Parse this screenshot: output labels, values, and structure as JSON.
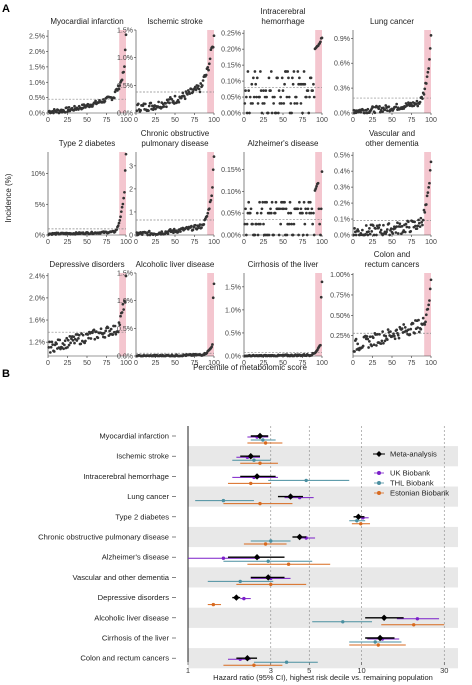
{
  "panels": {
    "a": "A",
    "b": "B"
  },
  "chart_data": [
    {
      "type": "scatter",
      "panel": "A",
      "ylabel": "Incidence (%)",
      "xlabel": "Percentile of metabolomic score",
      "x_ticks": [
        "0",
        "25",
        "50",
        "75",
        "100"
      ],
      "x_range": [
        0,
        100
      ],
      "highlight_range": [
        90,
        100
      ],
      "dashed_line": "mean incidence",
      "subplots": [
        {
          "title": [
            "Myocardial infarction"
          ],
          "yticks": [
            "0.0%",
            "0.5%",
            "1.0%",
            "1.5%",
            "2.0%",
            "2.5%"
          ],
          "ymax": 2.7,
          "base": 0.05,
          "mid": 0.7,
          "top": 1.45,
          "max": 2.55,
          "mean": 0.45,
          "spread": 0.08,
          "mode": "exp"
        },
        {
          "title": [
            "Ischemic stroke"
          ],
          "yticks": [
            "0.0%",
            "0.5%",
            "1.0%",
            "1.5%"
          ],
          "ymax": 1.5,
          "base": 0.1,
          "mid": 0.6,
          "top": 1.25,
          "max": 1.45,
          "mean": 0.38,
          "spread": 0.08,
          "mode": "exp"
        },
        {
          "title": [
            "Intracerebral",
            "hemorrhage"
          ],
          "yticks": [
            "0.00%",
            "0.05%",
            "0.10%",
            "0.15%",
            "0.20%",
            "0.25%"
          ],
          "ymax": 0.26,
          "base": 0.05,
          "mid": 0.08,
          "top": 0.2,
          "max": 0.24,
          "mean": 0.08,
          "spread": 0.028,
          "mode": "discrete",
          "levels": [
            0.0,
            0.03,
            0.05,
            0.07,
            0.09,
            0.11,
            0.13
          ]
        },
        {
          "title": [
            "Lung cancer"
          ],
          "yticks": [
            "0.0%",
            "0.3%",
            "0.6%",
            "0.9%"
          ],
          "ymax": 1.0,
          "base": 0.03,
          "mid": 0.15,
          "top": 0.65,
          "max": 0.95,
          "mean": 0.18,
          "spread": 0.04,
          "mode": "exp"
        },
        {
          "title": [
            "Type 2 diabetes"
          ],
          "yticks": [
            "0%",
            "5%",
            "10%"
          ],
          "ymax": 13.5,
          "base": 0.2,
          "mid": 0.6,
          "top": 7.0,
          "max": 13.0,
          "mean": 1.0,
          "spread": 0.15,
          "mode": "exp"
        },
        {
          "title": [
            "Chronic obstructive",
            "pulmonary disease"
          ],
          "yticks": [
            "0",
            "1",
            "2",
            "3"
          ],
          "ymax": 3.6,
          "base": 0.05,
          "mid": 0.5,
          "top": 2.0,
          "max": 3.5,
          "mean": 0.65,
          "spread": 0.1,
          "mode": "exp"
        },
        {
          "title": [
            "Alzheimer's disease"
          ],
          "yticks": [
            "0.00%",
            "0.05%",
            "0.10%",
            "0.15%"
          ],
          "ymax": 0.19,
          "base": 0.02,
          "mid": 0.04,
          "top": 0.1,
          "max": 0.17,
          "mean": 0.035,
          "spread": 0.02,
          "mode": "discrete",
          "levels": [
            0.0,
            0.025,
            0.05,
            0.06,
            0.075
          ]
        },
        {
          "title": [
            "Vascular and",
            "other dementia"
          ],
          "yticks": [
            "0.0%",
            "0.1%",
            "0.2%",
            "0.3%",
            "0.4%",
            "0.5%"
          ],
          "ymax": 0.52,
          "base": 0.02,
          "mid": 0.08,
          "top": 0.3,
          "max": 0.48,
          "mean": 0.09,
          "spread": 0.04,
          "mode": "exp"
        },
        {
          "title": [
            "Depressive disorders"
          ],
          "yticks": [
            "1.2%",
            "1.6%",
            "2.0%",
            "2.4%"
          ],
          "ymin": 0.95,
          "ymax": 2.45,
          "base": 1.1,
          "mid": 1.4,
          "top": 1.95,
          "max": 2.3,
          "mean": 1.38,
          "spread": 0.1,
          "mode": "lin"
        },
        {
          "title": [
            "Alcoholic liver disease"
          ],
          "yticks": [
            "0.0%",
            "0.5%",
            "1.0%",
            "1.5%"
          ],
          "ymax": 1.5,
          "base": 0.0,
          "mid": 0.03,
          "top": 0.2,
          "max": 1.3,
          "mean": 0.05,
          "spread": 0.015,
          "mode": "exp"
        },
        {
          "title": [
            "Cirrhosis of the liver"
          ],
          "yticks": [
            "0.0%",
            "0.5%",
            "1.0%",
            "1.5%"
          ],
          "ymax": 1.8,
          "base": 0.0,
          "mid": 0.03,
          "top": 0.25,
          "max": 1.6,
          "mean": 0.08,
          "spread": 0.02,
          "mode": "exp"
        },
        {
          "title": [
            "Colon and",
            "rectum cancers"
          ],
          "yticks": [
            "0.25%",
            "0.50%",
            "0.75%",
            "1.00%"
          ],
          "ymin": 0.0,
          "ymax": 1.02,
          "base": 0.12,
          "mid": 0.35,
          "top": 0.72,
          "max": 0.95,
          "mean": 0.28,
          "spread": 0.08,
          "mode": "lin"
        }
      ]
    },
    {
      "type": "forest",
      "panel": "B",
      "xlabel": "Hazard ratio (95% CI), highest risk decile vs. remaining population",
      "xscale": "log",
      "xlim": [
        1,
        36
      ],
      "x_ticks": [
        1,
        3,
        5,
        10,
        30
      ],
      "dashed_at": [
        3,
        5,
        10,
        30
      ],
      "legend": [
        {
          "name": "Meta-analysis",
          "color": "#000000",
          "shape": "diamond"
        },
        {
          "name": "UK Biobank",
          "color": "#7b1fc9",
          "shape": "circle"
        },
        {
          "name": "THL Biobank",
          "color": "#4a8fa0",
          "shape": "circle"
        },
        {
          "name": "Estonian Biobank",
          "color": "#d86a1f",
          "shape": "circle"
        }
      ],
      "rows": [
        {
          "label": "Myocardial infarction",
          "meta": [
            2.6,
            2.3,
            2.9
          ],
          "ukb": [
            2.5,
            2.2,
            2.9
          ],
          "thl": [
            2.7,
            2.3,
            3.2
          ],
          "est": [
            2.8,
            2.2,
            3.5
          ]
        },
        {
          "label": "Ischemic stroke",
          "meta": [
            2.3,
            2.0,
            2.6
          ],
          "ukb": [
            2.2,
            1.9,
            2.6
          ],
          "thl": [
            2.4,
            1.8,
            3.0
          ],
          "est": [
            2.6,
            2.0,
            3.3
          ]
        },
        {
          "label": "Intracerebral hemorrhage",
          "meta": [
            2.5,
            2.0,
            3.2
          ],
          "ukb": [
            2.4,
            1.8,
            3.3
          ],
          "thl": [
            4.8,
            2.9,
            8.5
          ],
          "est": [
            2.3,
            1.7,
            3.0
          ]
        },
        {
          "label": "Lung cancer",
          "meta": [
            3.9,
            3.3,
            4.6
          ],
          "ukb": [
            4.4,
            3.6,
            5.3
          ],
          "thl": [
            1.6,
            1.1,
            2.4
          ],
          "est": [
            2.6,
            1.6,
            4.0
          ]
        },
        {
          "label": "Type 2 diabetes",
          "meta": [
            9.6,
            9.0,
            10.4
          ],
          "ukb": [
            10.2,
            9.4,
            11.0
          ],
          "thl": [
            9.4,
            8.5,
            10.5
          ],
          "est": [
            9.9,
            8.8,
            11.2
          ]
        },
        {
          "label": "Chronic obstructive pulmonary disease",
          "meta": [
            4.4,
            4.0,
            4.8
          ],
          "ukb": [
            4.8,
            4.3,
            5.4
          ],
          "thl": [
            3.0,
            2.3,
            3.9
          ],
          "est": [
            2.8,
            2.1,
            3.7
          ]
        },
        {
          "label": "Alzheimer's disease",
          "meta": [
            2.5,
            1.7,
            3.6
          ],
          "ukb": [
            1.6,
            1.0,
            2.6
          ],
          "thl": [
            2.9,
            1.6,
            5.2
          ],
          "est": [
            3.8,
            2.2,
            6.6
          ]
        },
        {
          "label": "Vascular and other dementia",
          "meta": [
            2.9,
            2.3,
            3.6
          ],
          "ukb": [
            3.0,
            2.3,
            3.9
          ],
          "thl": [
            2.0,
            1.3,
            3.1
          ],
          "est": [
            3.0,
            1.9,
            4.8
          ]
        },
        {
          "label": "Depressive disorders",
          "meta": [
            1.9,
            1.8,
            2.0
          ],
          "ukb": [
            2.1,
            2.0,
            2.3
          ],
          "thl": null,
          "est": [
            1.4,
            1.3,
            1.55
          ]
        },
        {
          "label": "Alcoholic liver disease",
          "meta": [
            13.5,
            10.5,
            17.5
          ],
          "ukb": [
            21.0,
            16.0,
            28.0
          ],
          "thl": [
            7.8,
            5.2,
            11.5
          ],
          "est": [
            20.0,
            13.0,
            30.0
          ]
        },
        {
          "label": "Cirrhosis of the liver",
          "meta": [
            12.8,
            10.5,
            15.5
          ],
          "ukb": [
            13.2,
            10.8,
            16.5
          ],
          "thl": [
            12.0,
            8.5,
            17.0
          ],
          "est": [
            12.5,
            8.5,
            18.0
          ]
        },
        {
          "label": "Colon and rectum cancers",
          "meta": [
            2.2,
            1.9,
            2.5
          ],
          "ukb": [
            2.0,
            1.7,
            2.3
          ],
          "thl": [
            3.7,
            2.4,
            5.6
          ],
          "est": [
            2.4,
            1.6,
            3.5
          ]
        }
      ]
    }
  ]
}
